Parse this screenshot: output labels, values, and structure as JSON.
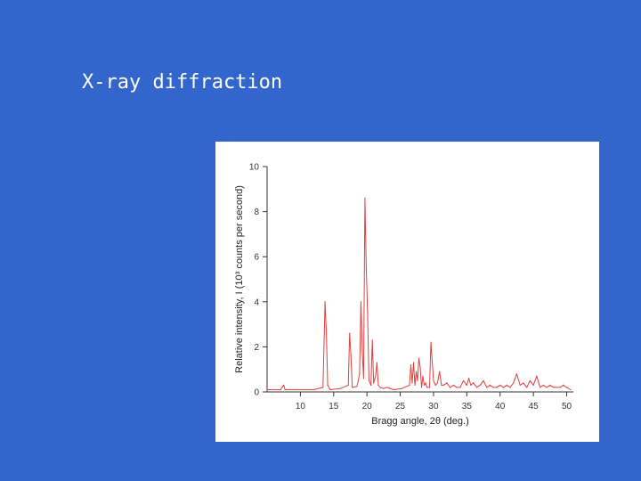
{
  "slide": {
    "title": "X-ray diffraction",
    "background_color": "#3366cc"
  },
  "chart_data": {
    "type": "line",
    "title": "",
    "xlabel": "Bragg angle, 2θ (deg.)",
    "ylabel": "Relative intensity, I (10³ counts per second)",
    "xlim": [
      5,
      51
    ],
    "ylim": [
      0,
      10
    ],
    "xticks": [
      10,
      15,
      20,
      25,
      30,
      35,
      40,
      45,
      50
    ],
    "yticks": [
      0,
      2,
      4,
      6,
      8,
      10
    ],
    "grid": false,
    "line_color": "#e04040",
    "series": [
      {
        "x": [
          5.0,
          7.0,
          7.5,
          7.7,
          8.0,
          10.0,
          12.0,
          13.4,
          13.7,
          13.9,
          14.1,
          14.5,
          16.0,
          17.2,
          17.4,
          17.6,
          17.8,
          18.5,
          18.9,
          19.1,
          19.3,
          19.5,
          19.7,
          19.9,
          20.1,
          20.3,
          20.6,
          20.8,
          21.0,
          21.3,
          21.5,
          21.7,
          22.0,
          22.5,
          23.0,
          24.0,
          25.2,
          26.4,
          26.6,
          26.8,
          27.0,
          27.2,
          27.4,
          27.6,
          27.8,
          28.0,
          28.2,
          28.4,
          28.6,
          28.8,
          29.0,
          29.4,
          29.6,
          30.0,
          30.3,
          30.6,
          30.9,
          31.2,
          31.5,
          32.0,
          32.5,
          33.0,
          33.5,
          34.0,
          34.5,
          35.0,
          35.3,
          35.6,
          36.0,
          36.5,
          37.0,
          37.5,
          38.0,
          38.5,
          39.0,
          39.5,
          40.0,
          40.5,
          41.0,
          41.5,
          42.0,
          42.5,
          43.0,
          43.5,
          44.0,
          44.5,
          45.0,
          45.5,
          46.0,
          46.5,
          47.0,
          47.5,
          48.0,
          48.5,
          49.0,
          49.5,
          50.0,
          50.6
        ],
        "y": [
          0.1,
          0.1,
          0.3,
          0.1,
          0.1,
          0.1,
          0.1,
          0.2,
          4.0,
          2.6,
          0.3,
          0.1,
          0.15,
          0.3,
          2.6,
          1.6,
          0.2,
          0.25,
          0.8,
          4.0,
          1.8,
          0.6,
          8.6,
          5.5,
          3.5,
          0.5,
          0.3,
          2.3,
          0.4,
          0.7,
          1.3,
          0.3,
          0.2,
          0.15,
          0.2,
          0.1,
          0.15,
          0.3,
          1.2,
          0.4,
          1.3,
          0.3,
          0.9,
          0.5,
          1.5,
          1.1,
          0.2,
          0.7,
          0.3,
          0.4,
          0.2,
          0.2,
          2.2,
          0.5,
          0.3,
          0.4,
          0.9,
          0.3,
          0.3,
          0.4,
          0.2,
          0.3,
          0.2,
          0.2,
          0.5,
          0.3,
          0.6,
          0.3,
          0.4,
          0.2,
          0.3,
          0.5,
          0.2,
          0.3,
          0.2,
          0.2,
          0.3,
          0.2,
          0.3,
          0.2,
          0.4,
          0.8,
          0.3,
          0.4,
          0.2,
          0.5,
          0.3,
          0.7,
          0.2,
          0.3,
          0.2,
          0.3,
          0.2,
          0.2,
          0.2,
          0.3,
          0.2,
          0.1
        ]
      }
    ]
  }
}
